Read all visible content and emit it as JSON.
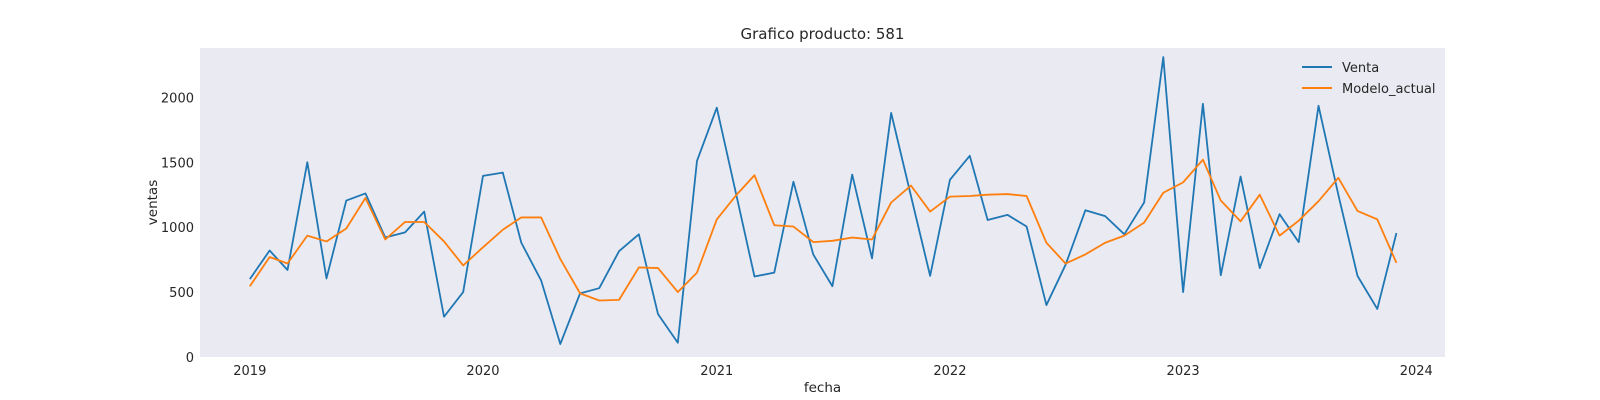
{
  "chart_data": {
    "type": "line",
    "title": "Grafico producto: 581",
    "xlabel": "fecha",
    "ylabel": "ventas",
    "xlim": [
      "2018-10-15",
      "2024-02-15"
    ],
    "ylim": [
      0,
      2380
    ],
    "x_ticks": [
      "2019",
      "2020",
      "2021",
      "2022",
      "2023",
      "2024"
    ],
    "y_ticks": [
      0,
      500,
      1000,
      1500,
      2000
    ],
    "grid": false,
    "legend_position": "top-right",
    "background_color": "#eaeaf2",
    "x": [
      "2019-01",
      "2019-02",
      "2019-03",
      "2019-04",
      "2019-05",
      "2019-06",
      "2019-07",
      "2019-08",
      "2019-09",
      "2019-10",
      "2019-11",
      "2019-12",
      "2020-01",
      "2020-02",
      "2020-03",
      "2020-04",
      "2020-05",
      "2020-06",
      "2020-07",
      "2020-08",
      "2020-09",
      "2020-10",
      "2020-11",
      "2020-12",
      "2021-01",
      "2021-02",
      "2021-03",
      "2021-04",
      "2021-05",
      "2021-06",
      "2021-07",
      "2021-08",
      "2021-09",
      "2021-10",
      "2021-11",
      "2021-12",
      "2022-01",
      "2022-02",
      "2022-03",
      "2022-04",
      "2022-05",
      "2022-06",
      "2022-07",
      "2022-08",
      "2022-09",
      "2022-10",
      "2022-11",
      "2022-12",
      "2023-01",
      "2023-02",
      "2023-03",
      "2023-04",
      "2023-05",
      "2023-06",
      "2023-07",
      "2023-08",
      "2023-09",
      "2023-10",
      "2023-11",
      "2023-12"
    ],
    "series": [
      {
        "name": "Venta",
        "color": "#1f77b4",
        "values": [
          600,
          820,
          670,
          1500,
          605,
          1205,
          1260,
          920,
          960,
          1120,
          310,
          500,
          1395,
          1420,
          880,
          590,
          100,
          490,
          530,
          815,
          945,
          330,
          110,
          1510,
          1920,
          1240,
          620,
          650,
          1350,
          790,
          545,
          1405,
          760,
          1880,
          1240,
          625,
          1365,
          1550,
          1055,
          1095,
          1005,
          400,
          710,
          1130,
          1085,
          945,
          1190,
          2310,
          500,
          1950,
          630,
          1390,
          685,
          1100,
          885,
          1935,
          1250,
          625,
          370,
          955
        ]
      },
      {
        "name": "Modelo_actual",
        "color": "#ff7f0e",
        "values": [
          545,
          770,
          720,
          935,
          890,
          990,
          1225,
          905,
          1040,
          1040,
          890,
          705,
          845,
          980,
          1075,
          1075,
          755,
          490,
          435,
          440,
          690,
          685,
          500,
          650,
          1060,
          1250,
          1400,
          1015,
          1005,
          885,
          895,
          920,
          905,
          1190,
          1320,
          1120,
          1235,
          1240,
          1250,
          1255,
          1240,
          880,
          720,
          790,
          880,
          935,
          1035,
          1265,
          1345,
          1520,
          1205,
          1045,
          1250,
          935,
          1050,
          1200,
          1380,
          1125,
          1060,
          725
        ]
      }
    ]
  }
}
